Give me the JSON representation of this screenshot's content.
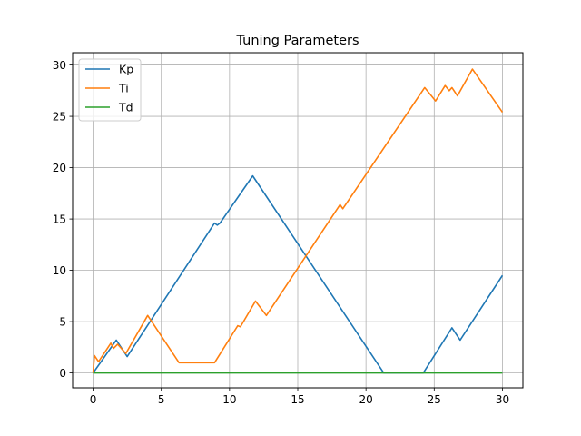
{
  "chart_data": {
    "type": "line",
    "title": "Tuning Parameters",
    "xlabel": "",
    "ylabel": "",
    "xlim": [
      -1.5,
      31.5
    ],
    "ylim": [
      -1.45,
      31.2
    ],
    "xticks": [
      0,
      5,
      10,
      15,
      20,
      25,
      30
    ],
    "yticks": [
      0,
      5,
      10,
      15,
      20,
      25,
      30
    ],
    "grid": true,
    "legend_position": "top-left",
    "series": [
      {
        "name": "Kp",
        "color": "#1f77b4",
        "x": [
          0,
          1.7,
          2.5,
          8.9,
          9.1,
          9.3,
          11.7,
          21.3,
          24.2,
          26.3,
          26.9,
          30
        ],
        "y": [
          0,
          3.2,
          1.6,
          14.6,
          14.4,
          14.6,
          19.2,
          0,
          0,
          4.4,
          3.2,
          9.5
        ]
      },
      {
        "name": "Ti",
        "color": "#ff7f0e",
        "x": [
          0,
          0.1,
          0.4,
          1.3,
          1.5,
          1.8,
          2.4,
          4.0,
          6.3,
          8.9,
          10.6,
          10.8,
          11.9,
          12.7,
          18.1,
          18.3,
          24.3,
          25.1,
          25.8,
          26.1,
          26.3,
          26.7,
          27.8,
          30
        ],
        "y": [
          0,
          1.7,
          1.1,
          2.9,
          2.4,
          2.8,
          1.9,
          5.6,
          1.0,
          1.0,
          4.6,
          4.5,
          7.0,
          5.6,
          16.4,
          16.0,
          27.8,
          26.5,
          28.0,
          27.5,
          27.8,
          27.0,
          29.6,
          25.4
        ]
      },
      {
        "name": "Td",
        "color": "#2ca02c",
        "x": [
          0,
          30
        ],
        "y": [
          0,
          0
        ]
      }
    ]
  }
}
